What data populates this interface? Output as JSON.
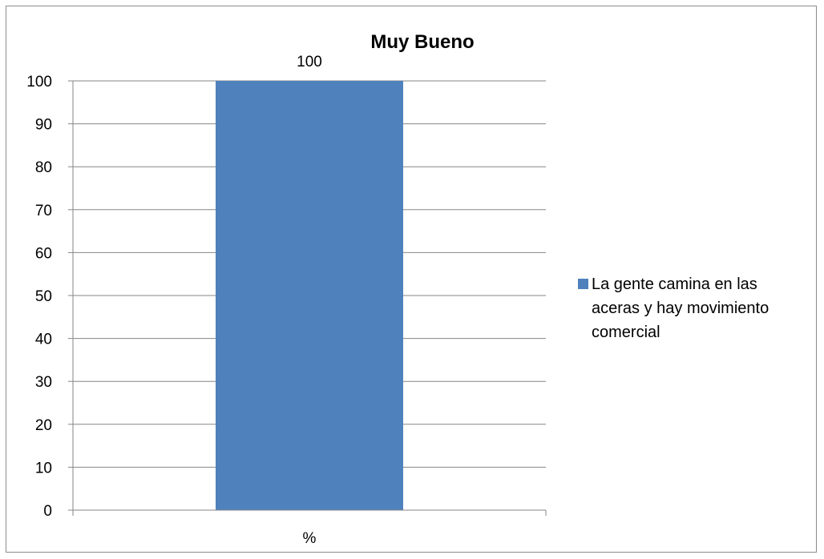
{
  "chart_data": {
    "type": "bar",
    "title": "Muy Bueno",
    "categories": [
      "%"
    ],
    "series": [
      {
        "name": "La gente camina en las aceras y hay movimiento comercial",
        "values": [
          100
        ],
        "color": "#4f81bd"
      }
    ],
    "data_labels": [
      "100"
    ],
    "ylim": [
      0,
      100
    ],
    "y_ticks": [
      0,
      10,
      20,
      30,
      40,
      50,
      60,
      70,
      80,
      90,
      100
    ],
    "grid": true,
    "legend_position": "right",
    "legend_lines": [
      "La gente camina en las",
      "aceras y hay movimiento",
      "comercial"
    ]
  }
}
